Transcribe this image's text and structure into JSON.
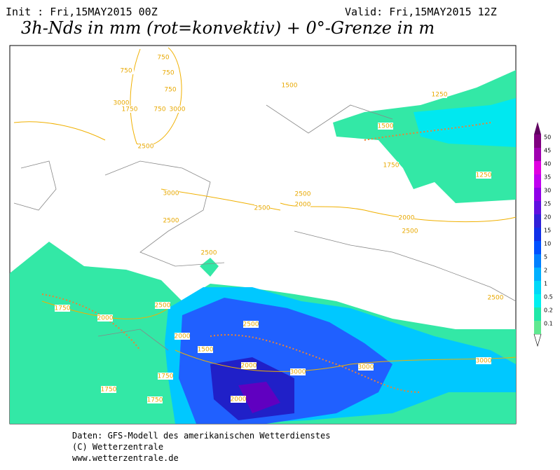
{
  "header": {
    "init": "Init : Fri,15MAY2015 00Z",
    "valid": "Valid: Fri,15MAY2015 12Z",
    "title": "3h-Nds in mm (rot=konvektiv) + 0°-Grenze in m"
  },
  "legend": {
    "labels": [
      "50",
      "45",
      "40",
      "35",
      "30",
      "25",
      "20",
      "15",
      "10",
      "5",
      "2",
      "1",
      "0.5",
      "0.2",
      "0.1"
    ],
    "colors": [
      "#800080",
      "#a000b0",
      "#e000e0",
      "#c000f0",
      "#9000e8",
      "#6010e0",
      "#3020d8",
      "#1030e8",
      "#0050ff",
      "#0080ff",
      "#00b0ff",
      "#00d8f8",
      "#00f0f0",
      "#20e8a8",
      "#60e890"
    ]
  },
  "contour_labels": [
    "750",
    "750",
    "750",
    "750",
    "3000",
    "1750",
    "750",
    "3000",
    "2500",
    "1500",
    "1250",
    "1500",
    "1750",
    "1250",
    "3000",
    "2500",
    "2500",
    "2000",
    "2500",
    "2000",
    "2500",
    "2500",
    "2500",
    "2500",
    "1750",
    "2000",
    "2500",
    "2000",
    "1500",
    "2000",
    "3000",
    "3000",
    "3000",
    "1750",
    "1750",
    "2000",
    "1750"
  ],
  "footer": [
    "Daten: GFS-Modell des amerikanischen Wetterdienstes",
    "(C) Wetterzentrale",
    "www.wetterzentrale.de"
  ]
}
